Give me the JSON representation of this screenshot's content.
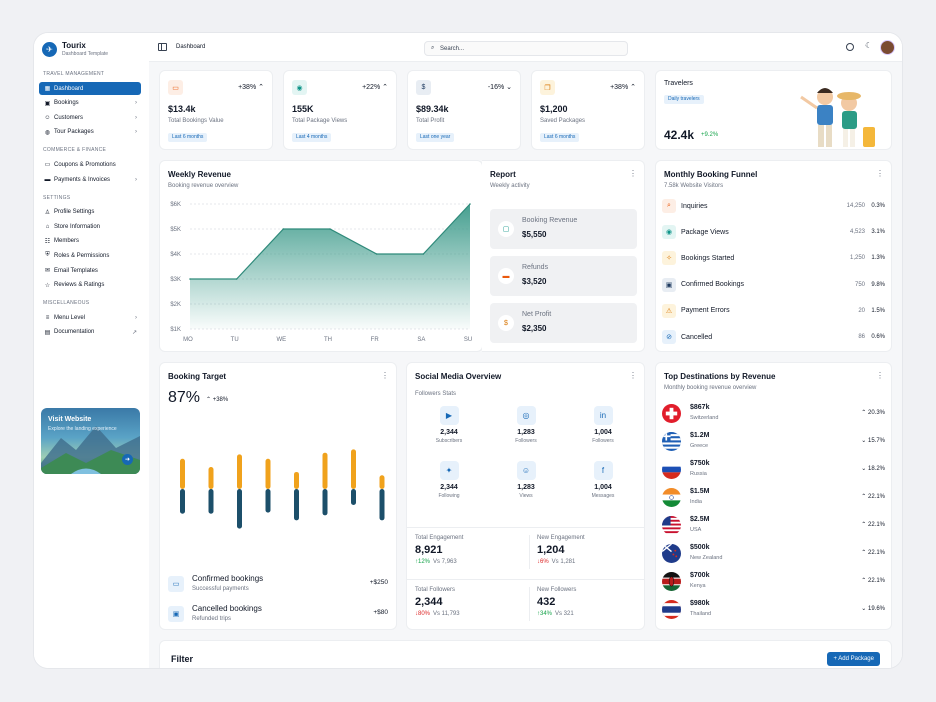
{
  "brand": {
    "name": "Tourix",
    "subtitle": "Dashboard Template"
  },
  "sidebar": {
    "sections": [
      {
        "title": "TRAVEL MANAGEMENT",
        "items": [
          {
            "label": "Dashboard",
            "icon": "grid-icon"
          },
          {
            "label": "Bookings",
            "icon": "calendar-icon"
          },
          {
            "label": "Customers",
            "icon": "users-icon"
          },
          {
            "label": "Tour Packages",
            "icon": "globe-icon"
          }
        ]
      },
      {
        "title": "COMMERCE & FINANCE",
        "items": [
          {
            "label": "Coupons & Promotions",
            "icon": "ticket-icon"
          },
          {
            "label": "Payments & Invoices",
            "icon": "card-icon"
          }
        ]
      },
      {
        "title": "SETTINGS",
        "items": [
          {
            "label": "Profile Settings",
            "icon": "user-icon"
          },
          {
            "label": "Store Information",
            "icon": "store-icon"
          },
          {
            "label": "Members",
            "icon": "group-icon"
          },
          {
            "label": "Roles & Permissions",
            "icon": "shield-icon"
          },
          {
            "label": "Email Templates",
            "icon": "mail-icon"
          },
          {
            "label": "Reviews & Ratings",
            "icon": "star-icon"
          }
        ]
      },
      {
        "title": "MISCELLANEOUS",
        "items": [
          {
            "label": "Menu Level",
            "icon": "menu-icon"
          },
          {
            "label": "Documentation",
            "icon": "doc-icon"
          }
        ]
      }
    ],
    "promo": {
      "title": "Visit Website",
      "subtitle": "Explore the landing experience"
    }
  },
  "topbar": {
    "breadcrumb": "Dashboard",
    "search_placeholder": "Search..."
  },
  "kpis": [
    {
      "value": "$13.4k",
      "label": "Total Bookings Value",
      "change": "+38%",
      "period": "Last 6 months",
      "icon": "ticket-icon",
      "color": "#ea580c",
      "bg": "#fdeee5"
    },
    {
      "value": "155K",
      "label": "Total Package Views",
      "change": "+22%",
      "period": "Last 4 months",
      "icon": "eye-icon",
      "color": "#0d9488",
      "bg": "#e3f5f3"
    },
    {
      "value": "$89.34k",
      "label": "Total Profit",
      "change": "-16%",
      "period": "Last one year",
      "icon": "dollar-icon",
      "color": "#1e3a5f",
      "bg": "#e8edf3"
    },
    {
      "value": "$1,200",
      "label": "Saved Packages",
      "change": "+38%",
      "period": "Last 6 months",
      "icon": "bookmark-icon",
      "color": "#d97706",
      "bg": "#fdf3dc"
    }
  ],
  "travelers": {
    "title": "Travelers",
    "pill": "Daily travelers",
    "value": "42.4k",
    "change": "+9.2%"
  },
  "weekly": {
    "title": "Weekly Revenue",
    "subtitle": "Booking revenue overview"
  },
  "chart_data": {
    "type": "area",
    "title": "Weekly Revenue",
    "categories": [
      "MO",
      "TU",
      "WE",
      "TH",
      "FR",
      "SA",
      "SU"
    ],
    "values": [
      3.0,
      3.0,
      5.0,
      5.0,
      4.0,
      4.0,
      6.0
    ],
    "yticks": [
      "$1K",
      "$2K",
      "$3K",
      "$4K",
      "$5K",
      "$6K"
    ],
    "ylim": [
      1,
      6
    ],
    "grid": true,
    "color": "#3c9a8a"
  },
  "report": {
    "title": "Report",
    "subtitle": "Weekly activity",
    "items": [
      {
        "label": "Booking Revenue",
        "value": "$5,550",
        "icon": "wallet-icon",
        "color": "#0d9488"
      },
      {
        "label": "Refunds",
        "value": "$3,520",
        "icon": "card-icon",
        "color": "#ea580c"
      },
      {
        "label": "Net Profit",
        "value": "$2,350",
        "icon": "dollar-circle-icon",
        "color": "#d97706"
      }
    ]
  },
  "funnel": {
    "title": "Monthly Booking Funnel",
    "subtitle": "7.58k Website Visitors",
    "rows": [
      {
        "name": "Inquiries",
        "count": "14,250",
        "pct": "0.3%",
        "icon": "search-icon",
        "color": "#ea580c",
        "bg": "#fdeee5"
      },
      {
        "name": "Package Views",
        "count": "4,523",
        "pct": "3.1%",
        "icon": "eye-icon",
        "color": "#0d9488",
        "bg": "#e3f5f3"
      },
      {
        "name": "Bookings Started",
        "count": "1,250",
        "pct": "1.3%",
        "icon": "sparkle-icon",
        "color": "#d97706",
        "bg": "#fdf3dc"
      },
      {
        "name": "Confirmed Bookings",
        "count": "750",
        "pct": "9.8%",
        "icon": "calendar-icon",
        "color": "#1e3a5f",
        "bg": "#e8edf3"
      },
      {
        "name": "Payment Errors",
        "count": "20",
        "pct": "1.5%",
        "icon": "warning-icon",
        "color": "#d97706",
        "bg": "#fdf3dc"
      },
      {
        "name": "Cancelled",
        "count": "86",
        "pct": "0.6%",
        "icon": "ban-icon",
        "color": "#1668b6",
        "bg": "#e7f1fb"
      }
    ]
  },
  "target": {
    "title": "Booking Target",
    "value": "87%",
    "change": "+38%",
    "bars": [
      {
        "top": 0.55,
        "bottom": 0.45
      },
      {
        "top": 0.4,
        "bottom": 0.45
      },
      {
        "top": 0.63,
        "bottom": 0.72
      },
      {
        "top": 0.55,
        "bottom": 0.43
      },
      {
        "top": 0.31,
        "bottom": 0.57
      },
      {
        "top": 0.66,
        "bottom": 0.48
      },
      {
        "top": 0.72,
        "bottom": 0.29
      },
      {
        "top": 0.25,
        "bottom": 0.57
      }
    ],
    "items": [
      {
        "title": "Confirmed bookings",
        "sub": "Successful payments",
        "value": "+$250",
        "icon": "ticket-icon"
      },
      {
        "title": "Cancelled bookings",
        "sub": "Refunded trips",
        "value": "+$80",
        "icon": "calendar-x-icon"
      }
    ]
  },
  "social": {
    "title": "Social Media Overview",
    "subtitle": "Followers Stats",
    "items": [
      {
        "icon": "youtube-icon",
        "glyph": "▶",
        "value": "2,344",
        "label": "Subscribers"
      },
      {
        "icon": "instagram-icon",
        "glyph": "◎",
        "value": "1,283",
        "label": "Followers"
      },
      {
        "icon": "linkedin-icon",
        "glyph": "in",
        "value": "1,004",
        "label": "Followers"
      },
      {
        "icon": "twitter-icon",
        "glyph": "✦",
        "value": "2,344",
        "label": "Following"
      },
      {
        "icon": "snapchat-icon",
        "glyph": "☺",
        "value": "1,283",
        "label": "Views"
      },
      {
        "icon": "facebook-icon",
        "glyph": "f",
        "value": "1,004",
        "label": "Messages"
      }
    ],
    "stats": [
      {
        "label": "Total Engagement",
        "value": "8,921",
        "delta": "12%",
        "dir": "up",
        "vs": "Vs 7,963"
      },
      {
        "label": "New Engagement",
        "value": "1,204",
        "delta": "6%",
        "dir": "down",
        "vs": "Vs 1,281"
      },
      {
        "label": "Total Followers",
        "value": "2,344",
        "delta": "80%",
        "dir": "down",
        "vs": "Vs 11,793"
      },
      {
        "label": "New Followers",
        "value": "432",
        "delta": "34%",
        "dir": "up",
        "vs": "Vs 321"
      }
    ]
  },
  "destinations": {
    "title": "Top Destinations by Revenue",
    "subtitle": "Monthly booking revenue overview",
    "rows": [
      {
        "value": "$867k",
        "country": "Switzerland",
        "pct": "20.3%",
        "dir": "up",
        "flag": "ch"
      },
      {
        "value": "$1.2M",
        "country": "Greece",
        "pct": "15.7%",
        "dir": "down",
        "flag": "gr"
      },
      {
        "value": "$750k",
        "country": "Russia",
        "pct": "18.2%",
        "dir": "down",
        "flag": "ru"
      },
      {
        "value": "$1.5M",
        "country": "India",
        "pct": "22.1%",
        "dir": "up",
        "flag": "in"
      },
      {
        "value": "$2.5M",
        "country": "USA",
        "pct": "22.1%",
        "dir": "up",
        "flag": "us"
      },
      {
        "value": "$500k",
        "country": "New Zealand",
        "pct": "22.1%",
        "dir": "up",
        "flag": "nz"
      },
      {
        "value": "$700k",
        "country": "Kenya",
        "pct": "22.1%",
        "dir": "up",
        "flag": "ke"
      },
      {
        "value": "$980k",
        "country": "Thailand",
        "pct": "19.6%",
        "dir": "down",
        "flag": "th"
      }
    ]
  },
  "filter": {
    "title": "Filter",
    "button": "+ Add Package"
  }
}
